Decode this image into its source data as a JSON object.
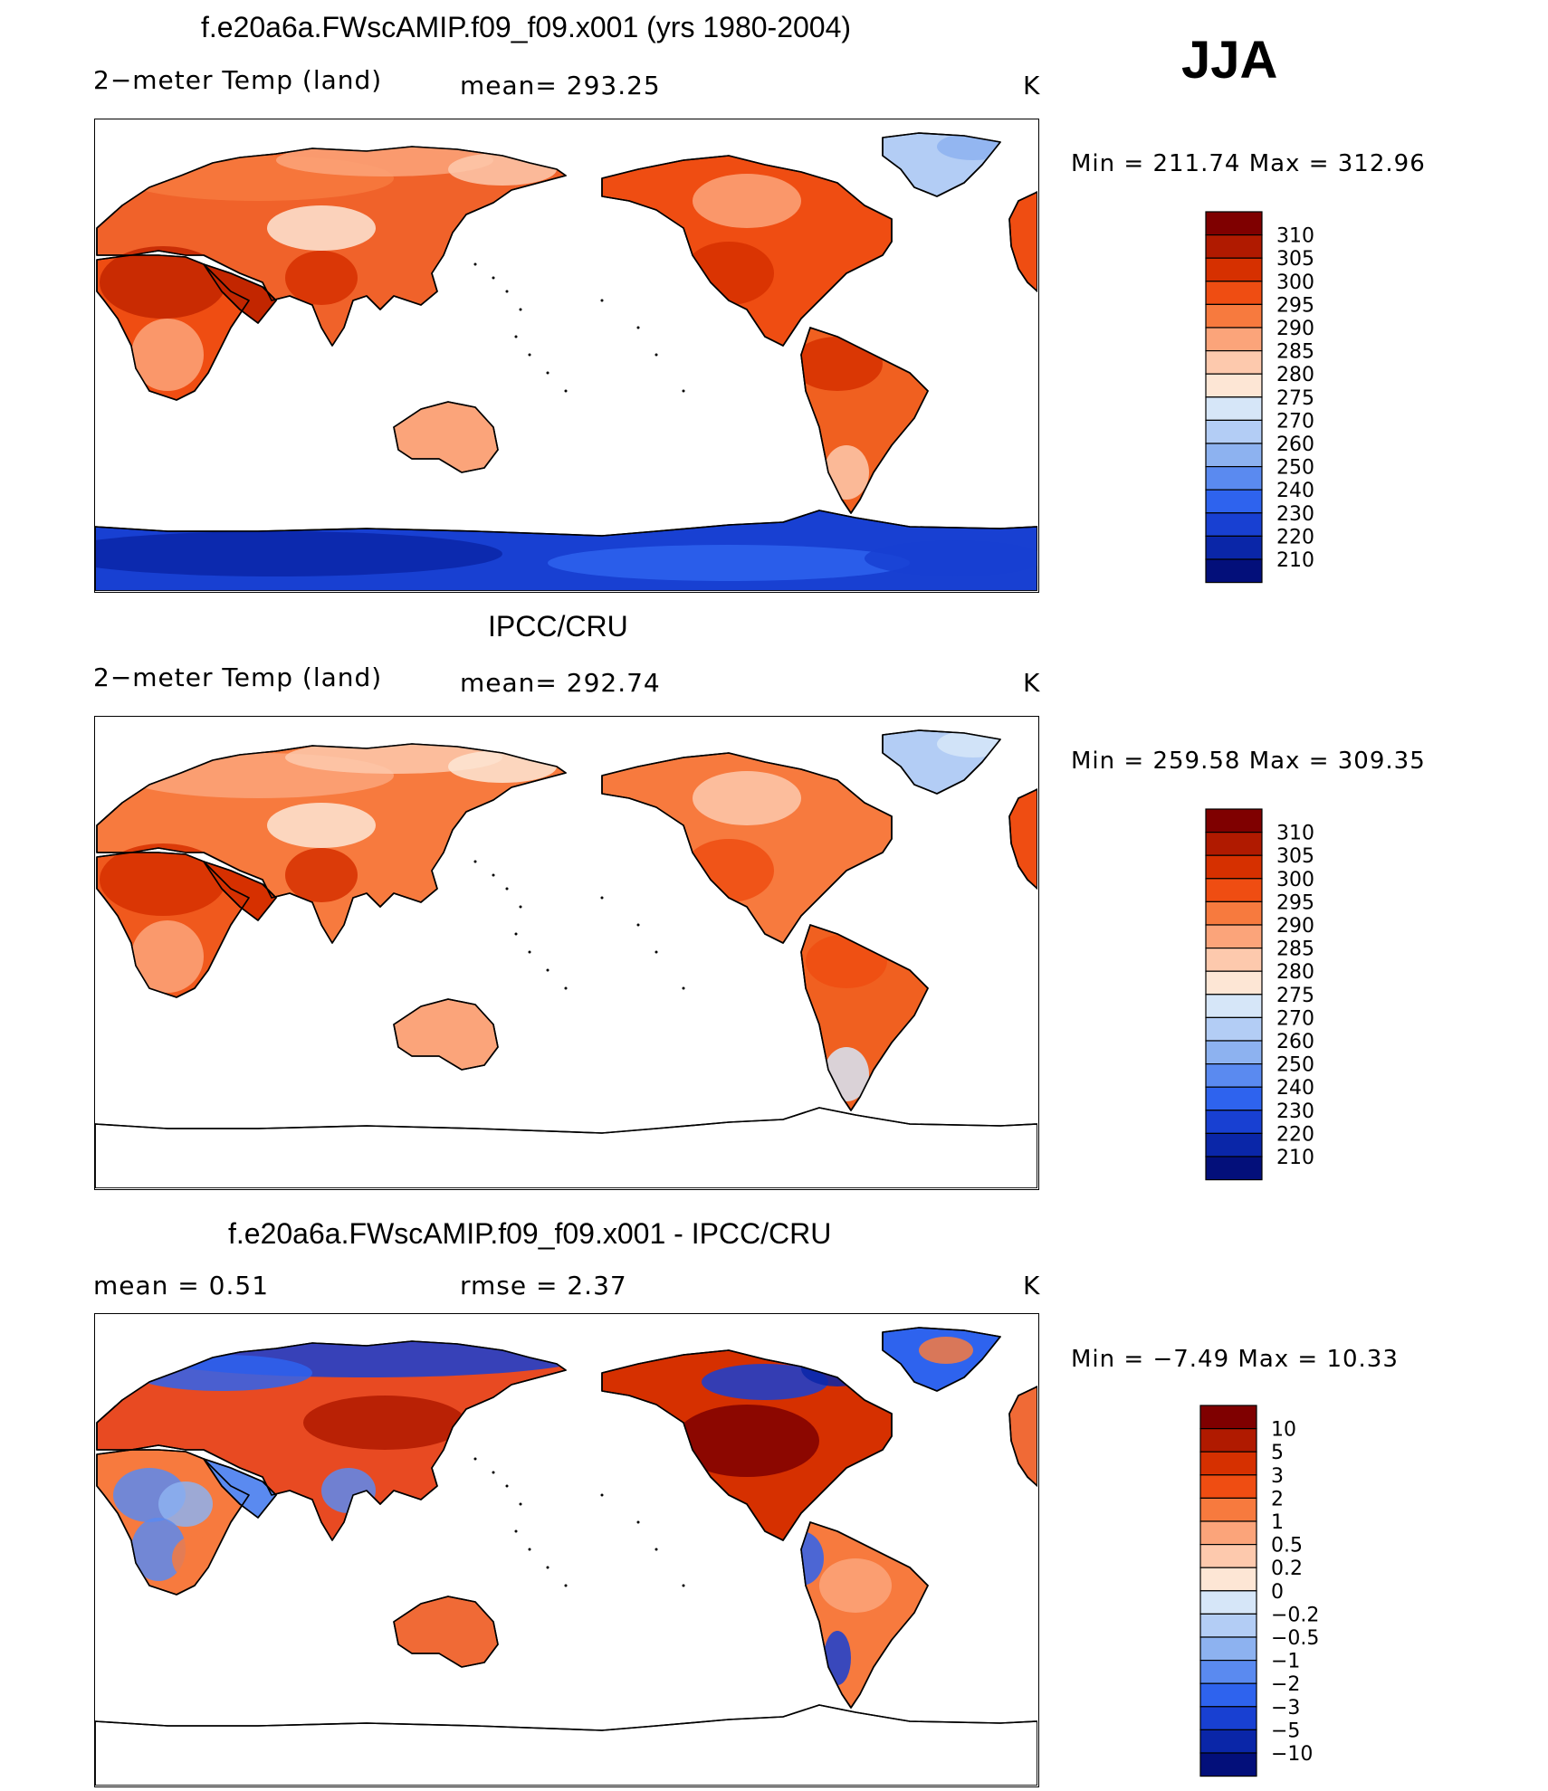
{
  "season": "JJA",
  "panels": [
    {
      "id": "model",
      "title": "f.e20a6a.FWscAMIP.f09_f09.x001 (yrs 1980-2004)",
      "variable": "2−meter Temp (land)",
      "stat1": "mean= 293.25",
      "stat2": "",
      "units": "K",
      "minmax": "Min  =  211.74  Max  =  312.96",
      "palette": "temp",
      "antarctica": true
    },
    {
      "id": "obs",
      "title": "IPCC/CRU",
      "variable": "2−meter Temp (land)",
      "stat1": "mean= 292.74",
      "stat2": "",
      "units": "K",
      "minmax": "Min  =  259.58  Max  =  309.35",
      "palette": "temp",
      "antarctica": false
    },
    {
      "id": "diff",
      "title": "f.e20a6a.FWscAMIP.f09_f09.x001 - IPCC/CRU",
      "variable": "mean =      0.51",
      "stat1": "rmse =      2.37",
      "stat2": "",
      "units": "K",
      "minmax": "Min  =     −7.49  Max  =     10.33",
      "palette": "diff",
      "antarctica": false
    }
  ],
  "colorbars": {
    "temp": {
      "labels": [
        "310",
        "305",
        "300",
        "295",
        "290",
        "285",
        "280",
        "275",
        "270",
        "260",
        "250",
        "240",
        "230",
        "220",
        "210"
      ],
      "colors": [
        "#7f0000",
        "#b01a00",
        "#d63000",
        "#ef4d12",
        "#f77a3e",
        "#fba47a",
        "#fdc9ad",
        "#fde6d5",
        "#d6e6f8",
        "#b3cdf5",
        "#8db2f0",
        "#5a8af0",
        "#2e63ee",
        "#1840d2",
        "#0a26a8",
        "#030f7a"
      ]
    },
    "diff": {
      "labels": [
        "10",
        "5",
        "3",
        "2",
        "1",
        "0.5",
        "0.2",
        "0",
        "−0.2",
        "−0.5",
        "−1",
        "−2",
        "−3",
        "−5",
        "−10"
      ],
      "colors": [
        "#7f0000",
        "#b01a00",
        "#d63000",
        "#ef4d12",
        "#f77a3e",
        "#fba47a",
        "#fdc9ad",
        "#fde6d5",
        "#d6e6f8",
        "#b3cdf5",
        "#8db2f0",
        "#5a8af0",
        "#2e63ee",
        "#1840d2",
        "#0a26a8",
        "#030f7a"
      ]
    }
  },
  "chart_data": [
    {
      "type": "heatmap",
      "title": "f.e20a6a.FWscAMIP.f09_f09.x001 (yrs 1980-2004)",
      "subtitle": "2−meter Temp (land)",
      "mean": 293.25,
      "units": "K",
      "min": 211.74,
      "max": 312.96,
      "contour_levels": [
        210,
        220,
        230,
        240,
        250,
        260,
        270,
        275,
        280,
        285,
        290,
        295,
        300,
        305,
        310
      ],
      "regions": [
        {
          "region": "Sahara / Arabia",
          "value_range": [
            305,
            312
          ]
        },
        {
          "region": "Central Africa",
          "value_range": [
            295,
            300
          ]
        },
        {
          "region": "Europe",
          "value_range": [
            290,
            300
          ]
        },
        {
          "region": "Siberia",
          "value_range": [
            280,
            290
          ]
        },
        {
          "region": "Tibet",
          "value_range": [
            275,
            285
          ]
        },
        {
          "region": "India",
          "value_range": [
            300,
            305
          ]
        },
        {
          "region": "Australia",
          "value_range": [
            285,
            295
          ]
        },
        {
          "region": "North America",
          "value_range": [
            290,
            305
          ]
        },
        {
          "region": "Alaska / Canada north",
          "value_range": [
            275,
            285
          ]
        },
        {
          "region": "Greenland",
          "value_range": [
            260,
            270
          ]
        },
        {
          "region": "Amazon",
          "value_range": [
            295,
            300
          ]
        },
        {
          "region": "Patagonia",
          "value_range": [
            270,
            280
          ]
        },
        {
          "region": "Antarctica",
          "value_range": [
            211,
            240
          ]
        }
      ]
    },
    {
      "type": "heatmap",
      "title": "IPCC/CRU",
      "subtitle": "2−meter Temp (land)",
      "mean": 292.74,
      "units": "K",
      "min": 259.58,
      "max": 309.35,
      "contour_levels": [
        210,
        220,
        230,
        240,
        250,
        260,
        270,
        275,
        280,
        285,
        290,
        295,
        300,
        305,
        310
      ],
      "regions": [
        {
          "region": "Sahara / Arabia",
          "value_range": [
            300,
            309
          ]
        },
        {
          "region": "Central Africa",
          "value_range": [
            295,
            300
          ]
        },
        {
          "region": "Europe",
          "value_range": [
            285,
            295
          ]
        },
        {
          "region": "Siberia",
          "value_range": [
            280,
            290
          ]
        },
        {
          "region": "Tibet",
          "value_range": [
            275,
            285
          ]
        },
        {
          "region": "India",
          "value_range": [
            300,
            305
          ]
        },
        {
          "region": "Australia",
          "value_range": [
            285,
            295
          ]
        },
        {
          "region": "North America",
          "value_range": [
            290,
            300
          ]
        },
        {
          "region": "Greenland",
          "value_range": [
            260,
            270
          ]
        },
        {
          "region": "Amazon",
          "value_range": [
            295,
            300
          ]
        },
        {
          "region": "Patagonia",
          "value_range": [
            275,
            280
          ]
        }
      ]
    },
    {
      "type": "heatmap",
      "title": "f.e20a6a.FWscAMIP.f09_f09.x001 - IPCC/CRU",
      "mean": 0.51,
      "rmse": 2.37,
      "units": "K",
      "min": -7.49,
      "max": 10.33,
      "contour_levels": [
        -10,
        -5,
        -3,
        -2,
        -1,
        -0.5,
        -0.2,
        0,
        0.2,
        0.5,
        1,
        2,
        3,
        5,
        10
      ],
      "regions": [
        {
          "region": "Siberia / northern Eurasia",
          "value_range": [
            -5,
            -2
          ]
        },
        {
          "region": "Central Asia",
          "value_range": [
            2,
            5
          ]
        },
        {
          "region": "Europe",
          "value_range": [
            1,
            3
          ]
        },
        {
          "region": "Sahara",
          "value_range": [
            -3,
            -1
          ]
        },
        {
          "region": "Central Africa",
          "value_range": [
            -2,
            2
          ]
        },
        {
          "region": "Central USA",
          "value_range": [
            3,
            10
          ]
        },
        {
          "region": "Canada north",
          "value_range": [
            -5,
            -2
          ]
        },
        {
          "region": "Greenland",
          "value_range": [
            -5,
            2
          ]
        },
        {
          "region": "Australia",
          "value_range": [
            1,
            3
          ]
        },
        {
          "region": "Amazon",
          "value_range": [
            -2,
            2
          ]
        },
        {
          "region": "Andes",
          "value_range": [
            -5,
            -2
          ]
        }
      ]
    }
  ]
}
